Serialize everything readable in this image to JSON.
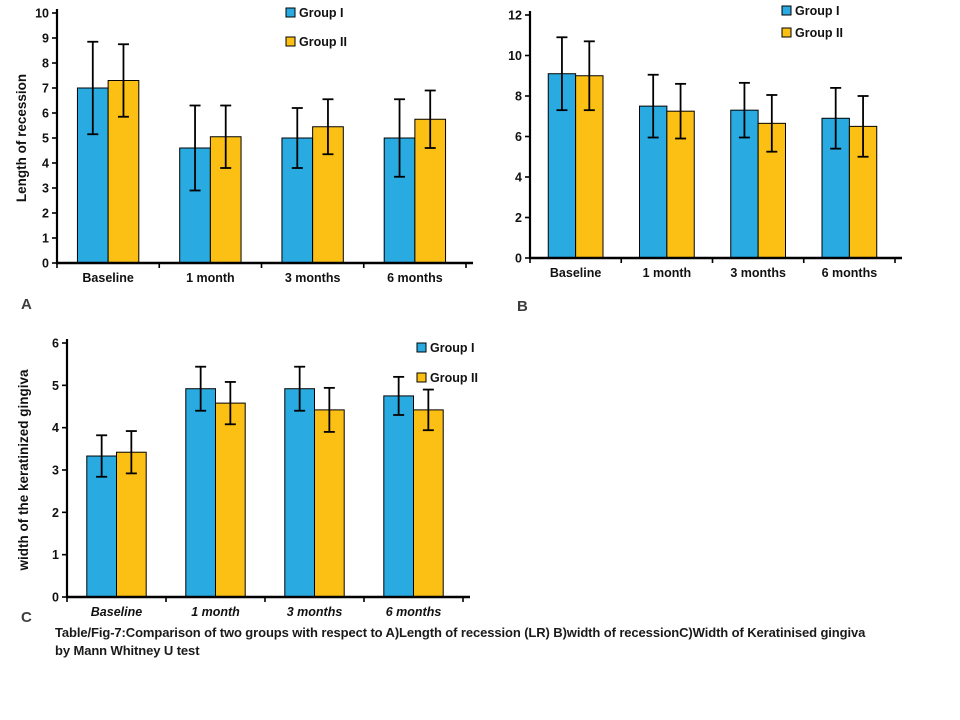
{
  "page": {
    "background": "#ffffff"
  },
  "panel_labels": {
    "a": "A",
    "b": "B",
    "c": "C"
  },
  "caption": {
    "line1": "Table/Fig-7:Comparison of two groups with respect to A)Length of recession (LR)  B)width of recessionC)Width of Keratinised gingiva",
    "line2": "by Mann Whitney U test"
  },
  "colors": {
    "group1": "#29ABE2",
    "group2": "#FCC014",
    "axis": "#000000",
    "error_bar": "#000000"
  },
  "chart_data": [
    {
      "id": "A",
      "type": "bar",
      "panel": "A",
      "title": "",
      "ylabel": "Length of recession",
      "xlabel": "",
      "ylim": [
        0,
        10
      ],
      "ytick_step": 1,
      "grid": false,
      "legend_position": "top-right-inside",
      "error_bars": true,
      "categories": [
        "Baseline",
        "1 month",
        "3 months",
        "6 months"
      ],
      "xlabels_italic": false,
      "series": [
        {
          "name": "Group I",
          "color": "#29ABE2",
          "values": [
            7.0,
            4.6,
            5.0,
            5.0
          ],
          "errors": [
            1.85,
            1.7,
            1.2,
            1.55
          ]
        },
        {
          "name": "Group II",
          "color": "#FCC014",
          "values": [
            7.3,
            5.05,
            5.45,
            5.75
          ],
          "errors": [
            1.45,
            1.25,
            1.1,
            1.15
          ]
        }
      ]
    },
    {
      "id": "B",
      "type": "bar",
      "panel": "B",
      "title": "",
      "ylabel": "",
      "xlabel": "",
      "ylim": [
        0,
        12
      ],
      "ytick_step": 2,
      "grid": false,
      "legend_position": "top-right-inside",
      "error_bars": true,
      "categories": [
        "Baseline",
        "1 month",
        "3 months",
        "6 months"
      ],
      "xlabels_italic": false,
      "series": [
        {
          "name": "Group I",
          "color": "#29ABE2",
          "values": [
            9.1,
            7.5,
            7.3,
            6.9
          ],
          "errors": [
            1.8,
            1.55,
            1.35,
            1.5
          ]
        },
        {
          "name": "Group II",
          "color": "#FCC014",
          "values": [
            9.0,
            7.25,
            6.65,
            6.5
          ],
          "errors": [
            1.7,
            1.35,
            1.4,
            1.5
          ]
        }
      ]
    },
    {
      "id": "C",
      "type": "bar",
      "panel": "C",
      "title": "",
      "ylabel": "width of the keratinized gingiva",
      "xlabel": "",
      "ylim": [
        0,
        6
      ],
      "ytick_step": 1,
      "grid": false,
      "legend_position": "top-right-inside",
      "error_bars": true,
      "categories": [
        "Baseline",
        "1 month",
        "3 months",
        "6 months"
      ],
      "xlabels_italic": true,
      "series": [
        {
          "name": "Group I",
          "color": "#29ABE2",
          "values": [
            3.33,
            4.92,
            4.92,
            4.75
          ],
          "errors": [
            0.49,
            0.52,
            0.52,
            0.45
          ]
        },
        {
          "name": "Group II",
          "color": "#FCC014",
          "values": [
            3.42,
            4.58,
            4.42,
            4.42
          ],
          "errors": [
            0.5,
            0.5,
            0.52,
            0.48
          ]
        }
      ]
    }
  ]
}
